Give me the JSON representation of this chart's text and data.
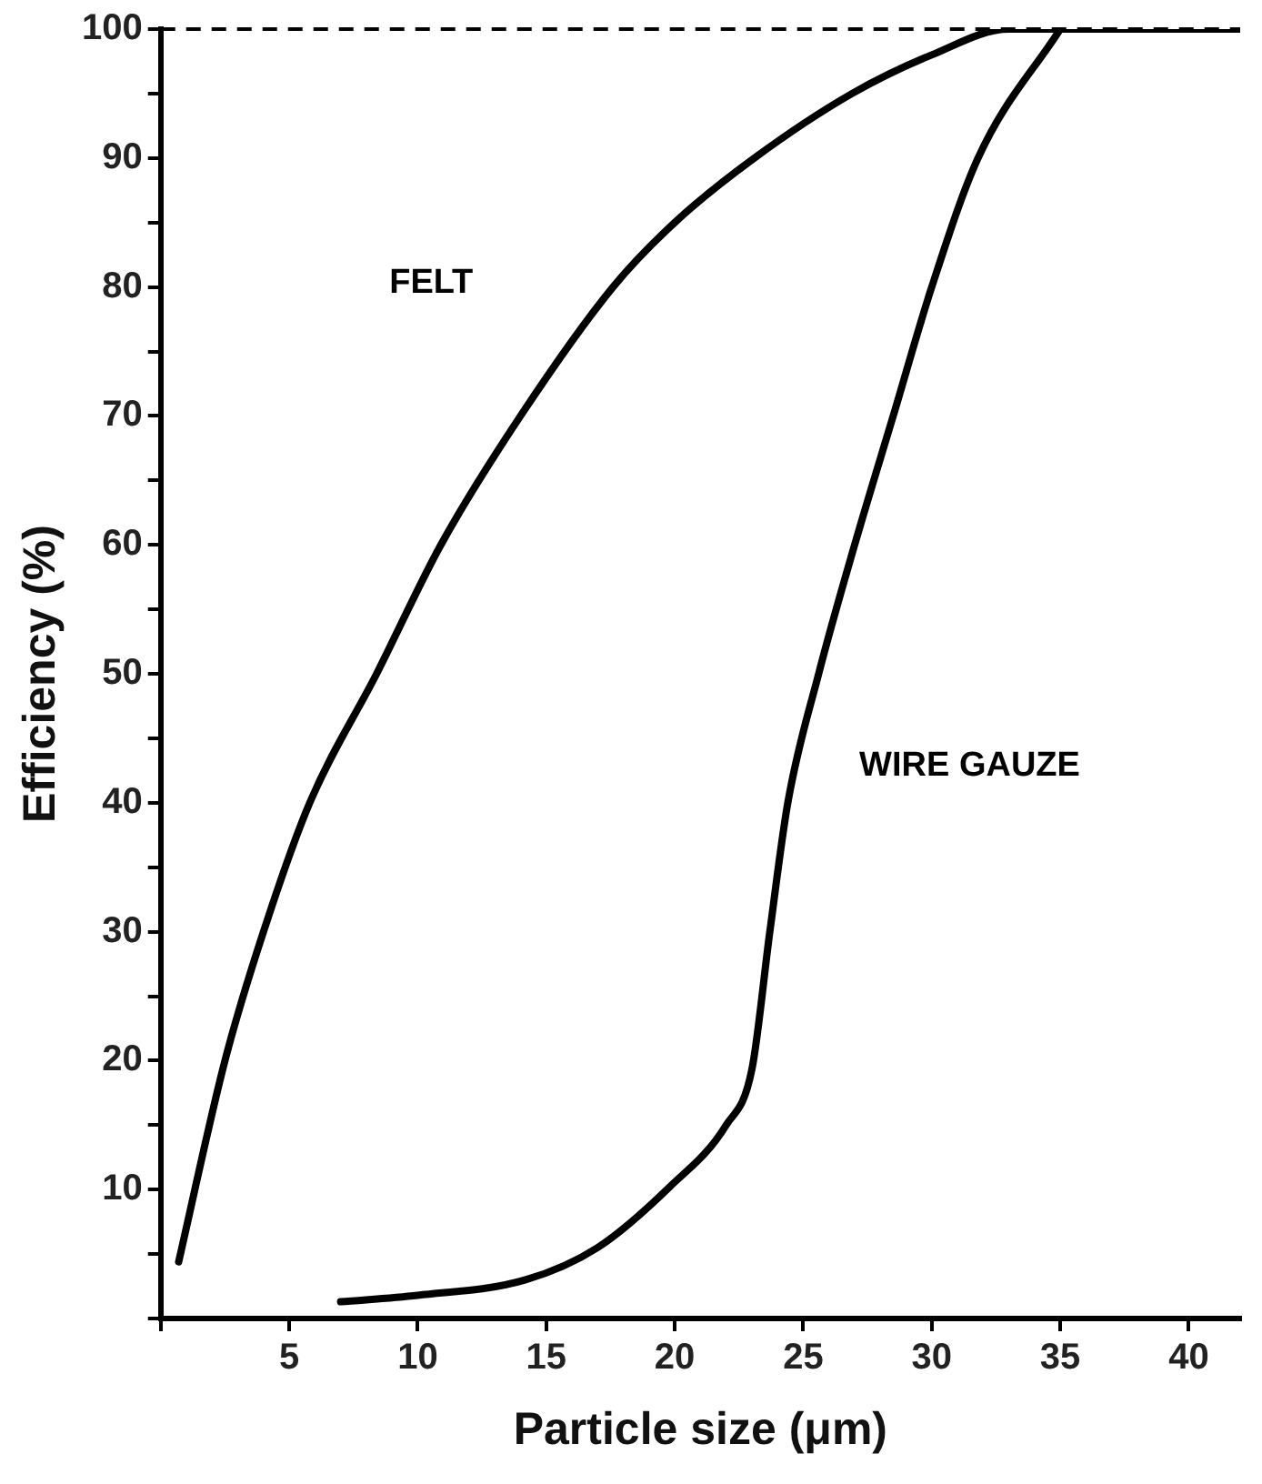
{
  "chart_data": {
    "type": "line",
    "xlabel": "Particle size (μm)",
    "ylabel": "Efficiency (%)",
    "xlim": [
      0,
      42
    ],
    "ylim": [
      0,
      100
    ],
    "xticks": [
      {
        "value": 0,
        "label": null
      },
      5,
      10,
      15,
      20,
      25,
      30,
      35,
      40
    ],
    "yticks": [
      {
        "value": 0,
        "label": null
      },
      {
        "value": 5,
        "label": null
      },
      10,
      {
        "value": 15,
        "label": null
      },
      20,
      {
        "value": 25,
        "label": null
      },
      30,
      {
        "value": 35,
        "label": null
      },
      40,
      {
        "value": 45,
        "label": null
      },
      50,
      {
        "value": 55,
        "label": null
      },
      60,
      {
        "value": 65,
        "label": null
      },
      70,
      {
        "value": 75,
        "label": null
      },
      80,
      {
        "value": 85,
        "label": null
      },
      90,
      {
        "value": 95,
        "label": null
      },
      100
    ],
    "grid": false,
    "legend": false,
    "marker": "none",
    "line_style": "solid",
    "series": [
      {
        "name": "FELT",
        "color": "#000000",
        "x": [
          0.7,
          2.5,
          4.0,
          5.8,
          8.4,
          10.9,
          14.0,
          17.6,
          20.0,
          23.1,
          26.9,
          30.0,
          33.0,
          35.0,
          42.0
        ],
        "values": [
          4.4,
          20,
          30,
          40,
          50,
          60,
          70,
          80,
          85,
          90,
          95,
          98,
          100,
          100,
          100
        ]
      },
      {
        "name": "WIRE GAUZE",
        "color": "#000000",
        "x": [
          7.0,
          10.0,
          14.2,
          17.0,
          19.8,
          22.0,
          23.0,
          23.7,
          24.4,
          25.6,
          27.0,
          28.5,
          30.0,
          31.8,
          35.0
        ],
        "values": [
          1.3,
          1.8,
          3.0,
          5.5,
          10.2,
          15,
          19.3,
          30,
          40,
          50,
          60,
          70,
          80,
          90,
          100
        ]
      }
    ],
    "ref_lines": [
      {
        "axis": "y",
        "value": 100,
        "line_style": "dashed",
        "color": "#000000"
      }
    ]
  }
}
